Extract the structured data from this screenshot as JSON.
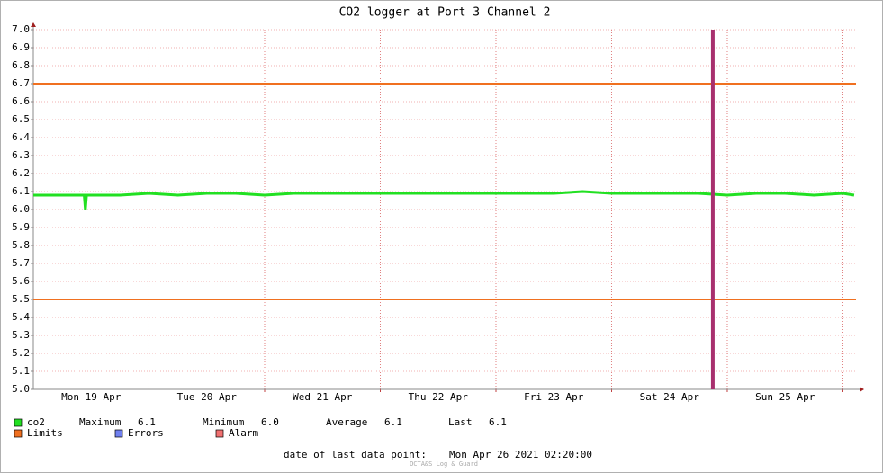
{
  "chart_data": {
    "type": "line",
    "title": "CO2 logger at Port 3 Channel 2",
    "x": [
      0,
      0.25,
      0.44,
      0.45,
      0.46,
      0.5,
      0.75,
      1,
      1.25,
      1.5,
      1.75,
      2,
      2.25,
      2.5,
      2.75,
      3,
      3.25,
      3.5,
      3.75,
      4,
      4.25,
      4.5,
      4.75,
      5,
      5.25,
      5.5,
      5.75,
      6,
      6.25,
      6.5,
      6.75,
      7,
      7.097
    ],
    "series": [
      {
        "name": "co2",
        "color": "#22e022",
        "values": [
          6.08,
          6.08,
          6.08,
          6.0,
          6.08,
          6.08,
          6.08,
          6.09,
          6.08,
          6.09,
          6.09,
          6.08,
          6.09,
          6.09,
          6.09,
          6.09,
          6.09,
          6.09,
          6.09,
          6.09,
          6.09,
          6.09,
          6.1,
          6.09,
          6.09,
          6.09,
          6.09,
          6.08,
          6.09,
          6.09,
          6.08,
          6.09,
          6.08
        ]
      }
    ],
    "limits": {
      "name": "Limits",
      "color": "#f07020",
      "values": [
        5.5,
        6.7
      ]
    },
    "errors": {
      "name": "Errors",
      "color": "#7080f0"
    },
    "alarm": {
      "name": "Alarm",
      "color": "#f07070",
      "line_color": "#a8306e",
      "x": [
        5.875
      ]
    },
    "stats": [
      {
        "name": "Maximum",
        "value": 6.1,
        "label": "6.1"
      },
      {
        "name": "Minimum",
        "value": 6,
        "label": "6.0"
      },
      {
        "name": "Average",
        "value": 6.1,
        "label": "6.1"
      },
      {
        "name": "Last",
        "value": 6.1,
        "label": "6.1"
      }
    ],
    "xlim": [
      0,
      7.113
    ],
    "xticks": [
      {
        "value": 0.5,
        "label": "Mon 19 Apr"
      },
      {
        "value": 1.5,
        "label": "Tue 20 Apr"
      },
      {
        "value": 2.5,
        "label": "Wed 21 Apr"
      },
      {
        "value": 3.5,
        "label": "Thu 22 Apr"
      },
      {
        "value": 4.5,
        "label": "Fri 23 Apr"
      },
      {
        "value": 5.5,
        "label": "Sat 24 Apr"
      },
      {
        "value": 6.5,
        "label": "Sun 25 Apr"
      }
    ],
    "xgrid": [
      1,
      2,
      3,
      4,
      5,
      6,
      7
    ],
    "ylim": [
      5,
      7
    ],
    "yticks": [
      {
        "value": 5,
        "label": "5.0"
      },
      5.1,
      5.2,
      5.3,
      5.4,
      5.5,
      5.6,
      5.7,
      5.8,
      5.9,
      {
        "value": 6,
        "label": "6.0"
      },
      6.1,
      6.2,
      6.3,
      6.4,
      6.5,
      6.6,
      6.7,
      6.8,
      6.9,
      {
        "value": 7,
        "label": "7.0"
      }
    ],
    "grid": true,
    "footer_label": "date of last data point:",
    "footer_value": "Mon Apr 26 2021 02:20:00",
    "watermark": "OCTA&S Log & Guard"
  }
}
